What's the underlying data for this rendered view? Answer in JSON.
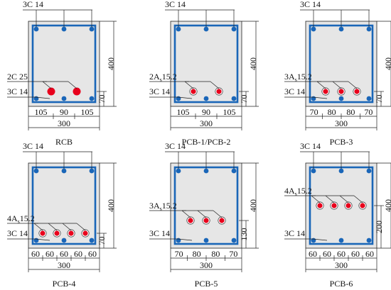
{
  "colors": {
    "stirrup": "#1a66b8",
    "bar": "#1a66b8",
    "prestress": "#e8001c",
    "section_fill": "#e6e6e6",
    "line": "#222222"
  },
  "sections": [
    {
      "caption": "RCB",
      "top_label": "3C 14",
      "bottom_label": "3C 14",
      "tendon_label": {
        "main": "2C 25",
        "sub": ""
      },
      "tendon_type": "rebar",
      "height_label": "400",
      "depth_label": "70",
      "width_label": "300",
      "width_segments": [
        "105",
        "90",
        "105"
      ],
      "tendon_count": 2
    },
    {
      "caption": "PCB-1/PCB-2",
      "top_label": "3C 14",
      "bottom_label": "3C 14",
      "tendon_label": {
        "main": "2A",
        "sub": "s",
        "tail": "15.2"
      },
      "tendon_type": "strand",
      "height_label": "400",
      "depth_label": "70",
      "width_label": "300",
      "width_segments": [
        "105",
        "90",
        "105"
      ],
      "tendon_count": 2
    },
    {
      "caption": "PCB-3",
      "top_label": "3C 14",
      "bottom_label": "3C 14",
      "tendon_label": {
        "main": "3A",
        "sub": "s",
        "tail": "15.2"
      },
      "tendon_type": "strand",
      "height_label": "400",
      "depth_label": "70",
      "width_label": "300",
      "width_segments": [
        "70",
        "80",
        "80",
        "70"
      ],
      "tendon_count": 3
    },
    {
      "caption": "PCB-4",
      "top_label": "3C 14",
      "bottom_label": "3C 14",
      "tendon_label": {
        "main": "4A",
        "sub": "s",
        "tail": "15.2"
      },
      "tendon_type": "strand",
      "height_label": "400",
      "depth_label": "70",
      "width_label": "300",
      "width_segments": [
        "60",
        "60",
        "60",
        "60",
        "60"
      ],
      "tendon_count": 4
    },
    {
      "caption": "PCB-5",
      "top_label": "3C 14",
      "bottom_label": "3C 14",
      "tendon_label": {
        "main": "3A",
        "sub": "s",
        "tail": "15.2"
      },
      "tendon_type": "strand",
      "height_label": "400",
      "depth_label": "130",
      "width_label": "300",
      "width_segments": [
        "70",
        "80",
        "80",
        "70"
      ],
      "tendon_count": 3
    },
    {
      "caption": "PCB-6",
      "top_label": "3C 14",
      "bottom_label": "3C 14",
      "tendon_label": {
        "main": "4A",
        "sub": "s",
        "tail": "15.2"
      },
      "tendon_type": "strand",
      "height_label": "400",
      "depth_label": "200",
      "width_label": "300",
      "width_segments": [
        "60",
        "60",
        "60",
        "60",
        "60"
      ],
      "tendon_count": 4
    }
  ]
}
